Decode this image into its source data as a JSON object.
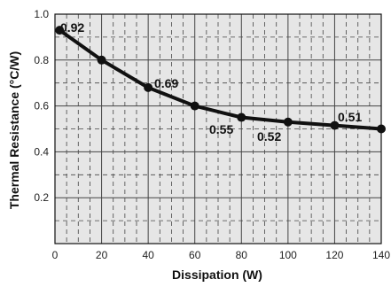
{
  "chart_data": {
    "type": "line",
    "title": "",
    "xlabel": "Dissipation (W)",
    "ylabel": "Thermal Resistance (°C/W)",
    "xlim": [
      0,
      140
    ],
    "ylim": [
      0.0,
      1.0
    ],
    "x_ticks": [
      "0",
      "20",
      "40",
      "60",
      "80",
      "100",
      "120",
      "140"
    ],
    "y_ticks": [
      "0.2",
      "0.4",
      "0.6",
      "0.8",
      "1.0"
    ],
    "grid": true,
    "series": [
      {
        "x": [
          2,
          20,
          40,
          60,
          80,
          100,
          120,
          140
        ],
        "y": [
          0.93,
          0.8,
          0.68,
          0.6,
          0.55,
          0.53,
          0.515,
          0.5
        ]
      }
    ],
    "annotations": [
      "0.92",
      "0.69",
      "0.55",
      "0.52",
      "0.51"
    ],
    "colors": {
      "plot_background": "#e6e6e6",
      "line": "#111111",
      "grid": "#444444"
    }
  }
}
